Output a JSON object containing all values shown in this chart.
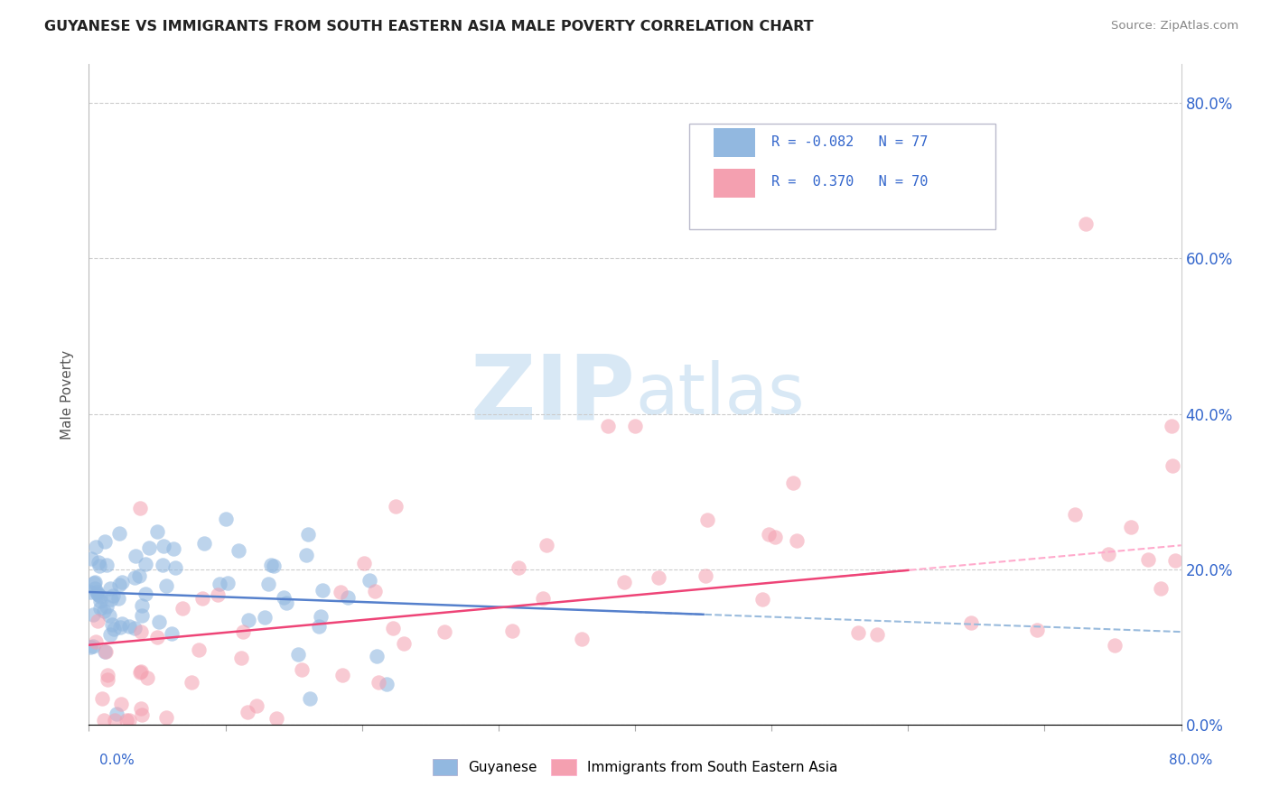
{
  "title": "GUYANESE VS IMMIGRANTS FROM SOUTH EASTERN ASIA MALE POVERTY CORRELATION CHART",
  "source": "Source: ZipAtlas.com",
  "ylabel": "Male Poverty",
  "r1": -0.082,
  "n1": 77,
  "r2": 0.37,
  "n2": 70,
  "color1": "#92B8E0",
  "color2": "#F4A0B0",
  "line1_solid_color": "#5580CC",
  "line2_solid_color": "#EE4477",
  "line1_dash_color": "#99BBDD",
  "line2_dash_color": "#FFAACC",
  "xmin": 0.0,
  "xmax": 0.8,
  "ymin": 0.0,
  "ymax": 0.85,
  "yticks": [
    0.0,
    0.2,
    0.4,
    0.6,
    0.8
  ],
  "ytick_labels": [
    "0.0%",
    "20.0%",
    "40.0%",
    "60.0%",
    "80.0%"
  ],
  "legend_r1_color": "#3366CC",
  "legend_r2_color": "#3366CC",
  "watermark_color": "#D8E8F5"
}
